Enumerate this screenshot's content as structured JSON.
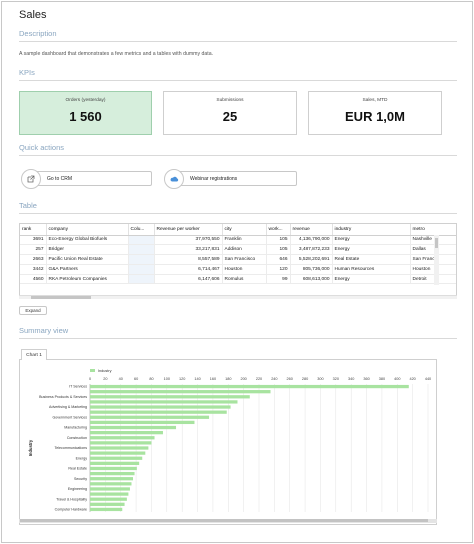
{
  "page": {
    "title": "Sales"
  },
  "sections": {
    "description": "Description",
    "kpis": "KPIs",
    "quick_actions": "Quick actions",
    "table": "Table",
    "summary": "Summary view"
  },
  "description_text": "A sample dashboard that demonstrates a few metrics and a tables with dummy data.",
  "kpis": [
    {
      "label": "Orders (yesterday)",
      "value": "1 560"
    },
    {
      "label": "Submissions",
      "value": "25"
    },
    {
      "label": "Sales, MTD",
      "value": "EUR 1,0M"
    }
  ],
  "quick_actions": [
    {
      "label": "Go to CRM",
      "icon": "external-link-icon"
    },
    {
      "label": "Webinar registrations",
      "icon": "cloud-icon"
    }
  ],
  "table": {
    "columns": [
      "rank",
      "company",
      "Colu...",
      "Revenue per worker",
      "city",
      "work...",
      "revenue",
      "industry",
      "metro"
    ],
    "rows": [
      [
        "3691",
        "Eco-Energy Global Biofuels",
        "",
        "37,970,550",
        "Franklin",
        "105",
        "4,136,790,000",
        "Energy",
        "Nashville"
      ],
      [
        "257",
        "Bridger",
        "",
        "33,217,831",
        "Addison",
        "105",
        "3,487,872,233",
        "Energy",
        "Dallas"
      ],
      [
        "2663",
        "Pacific Union Real Estate",
        "",
        "8,557,589",
        "San Francisco",
        "646",
        "5,528,202,691",
        "Real Estate",
        "San Franci"
      ],
      [
        "3442",
        "G&A Partners",
        "",
        "6,714,467",
        "Houston",
        "120",
        "805,736,000",
        "Human Resources",
        "Houston"
      ],
      [
        "4560",
        "RKA Petroleum Companies",
        "",
        "6,147,606",
        "Romulus",
        "99",
        "608,613,000",
        "Energy",
        "Detroit"
      ]
    ],
    "expand_label": "Expand"
  },
  "chart_tab": "Chart 1",
  "chart_data": {
    "type": "bar",
    "orientation": "horizontal",
    "legend": "Industry",
    "legend_position": "top-left",
    "color": "#a8e3a0",
    "ylabel": "Industry",
    "xlim": [
      0,
      440
    ],
    "xticks": [
      0,
      20,
      40,
      60,
      80,
      100,
      120,
      140,
      160,
      180,
      200,
      220,
      240,
      260,
      280,
      300,
      320,
      340,
      360,
      380,
      400,
      420,
      440
    ],
    "grid": true,
    "categories": [
      "IT Services",
      "",
      "Business Products & Services",
      "",
      "Advertising & Marketing",
      "",
      "Government Services",
      "",
      "Manufacturing",
      "",
      "Construction",
      "",
      "Telecommunications",
      "",
      "Energy",
      "",
      "Real Estate",
      "",
      "Security",
      "",
      "Engineering",
      "",
      "Travel & Hospitality",
      "",
      "Computer Hardware"
    ],
    "values": [
      415,
      235,
      208,
      192,
      183,
      178,
      155,
      136,
      112,
      95,
      84,
      80,
      76,
      72,
      68,
      64,
      61,
      58,
      56,
      54,
      52,
      50,
      48,
      45,
      42
    ]
  }
}
